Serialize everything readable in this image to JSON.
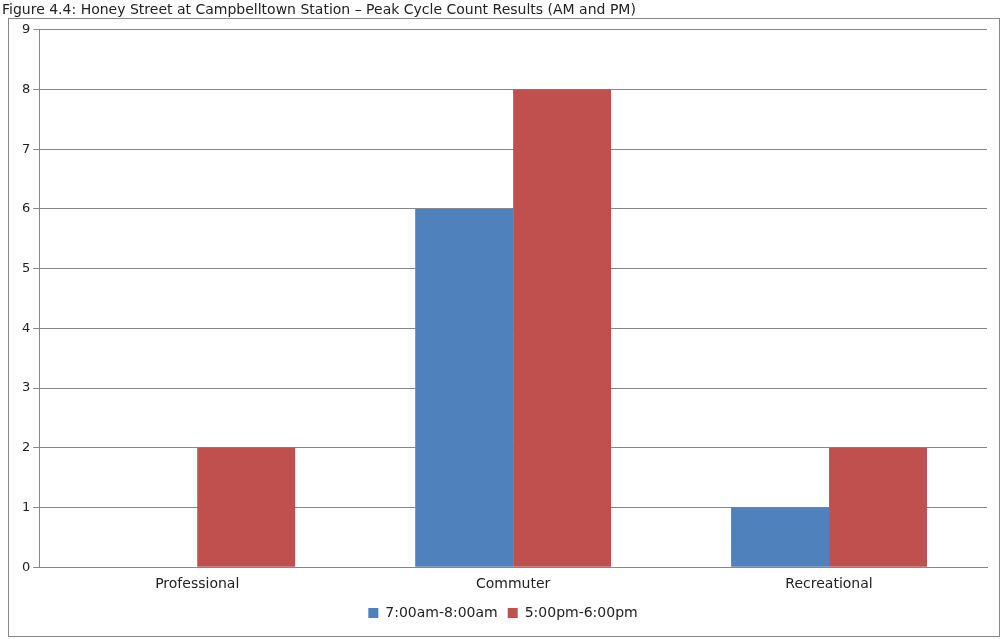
{
  "chart_data": {
    "type": "bar",
    "title": "Figure 4.4: Honey Street at Campbelltown Station – Peak Cycle Count Results (AM and PM)",
    "categories": [
      "Professional",
      "Commuter",
      "Recreational"
    ],
    "series": [
      {
        "name": "7:00am-8:00am",
        "color": "#4f81bd",
        "values": [
          0,
          6,
          1
        ]
      },
      {
        "name": "5:00pm-6:00pm",
        "color": "#c0504d",
        "values": [
          2,
          8,
          2
        ]
      }
    ],
    "ylim": [
      0,
      9
    ],
    "yticks": [
      0,
      1,
      2,
      3,
      4,
      5,
      6,
      7,
      8,
      9
    ],
    "grid": "y",
    "legend": "bottom"
  }
}
